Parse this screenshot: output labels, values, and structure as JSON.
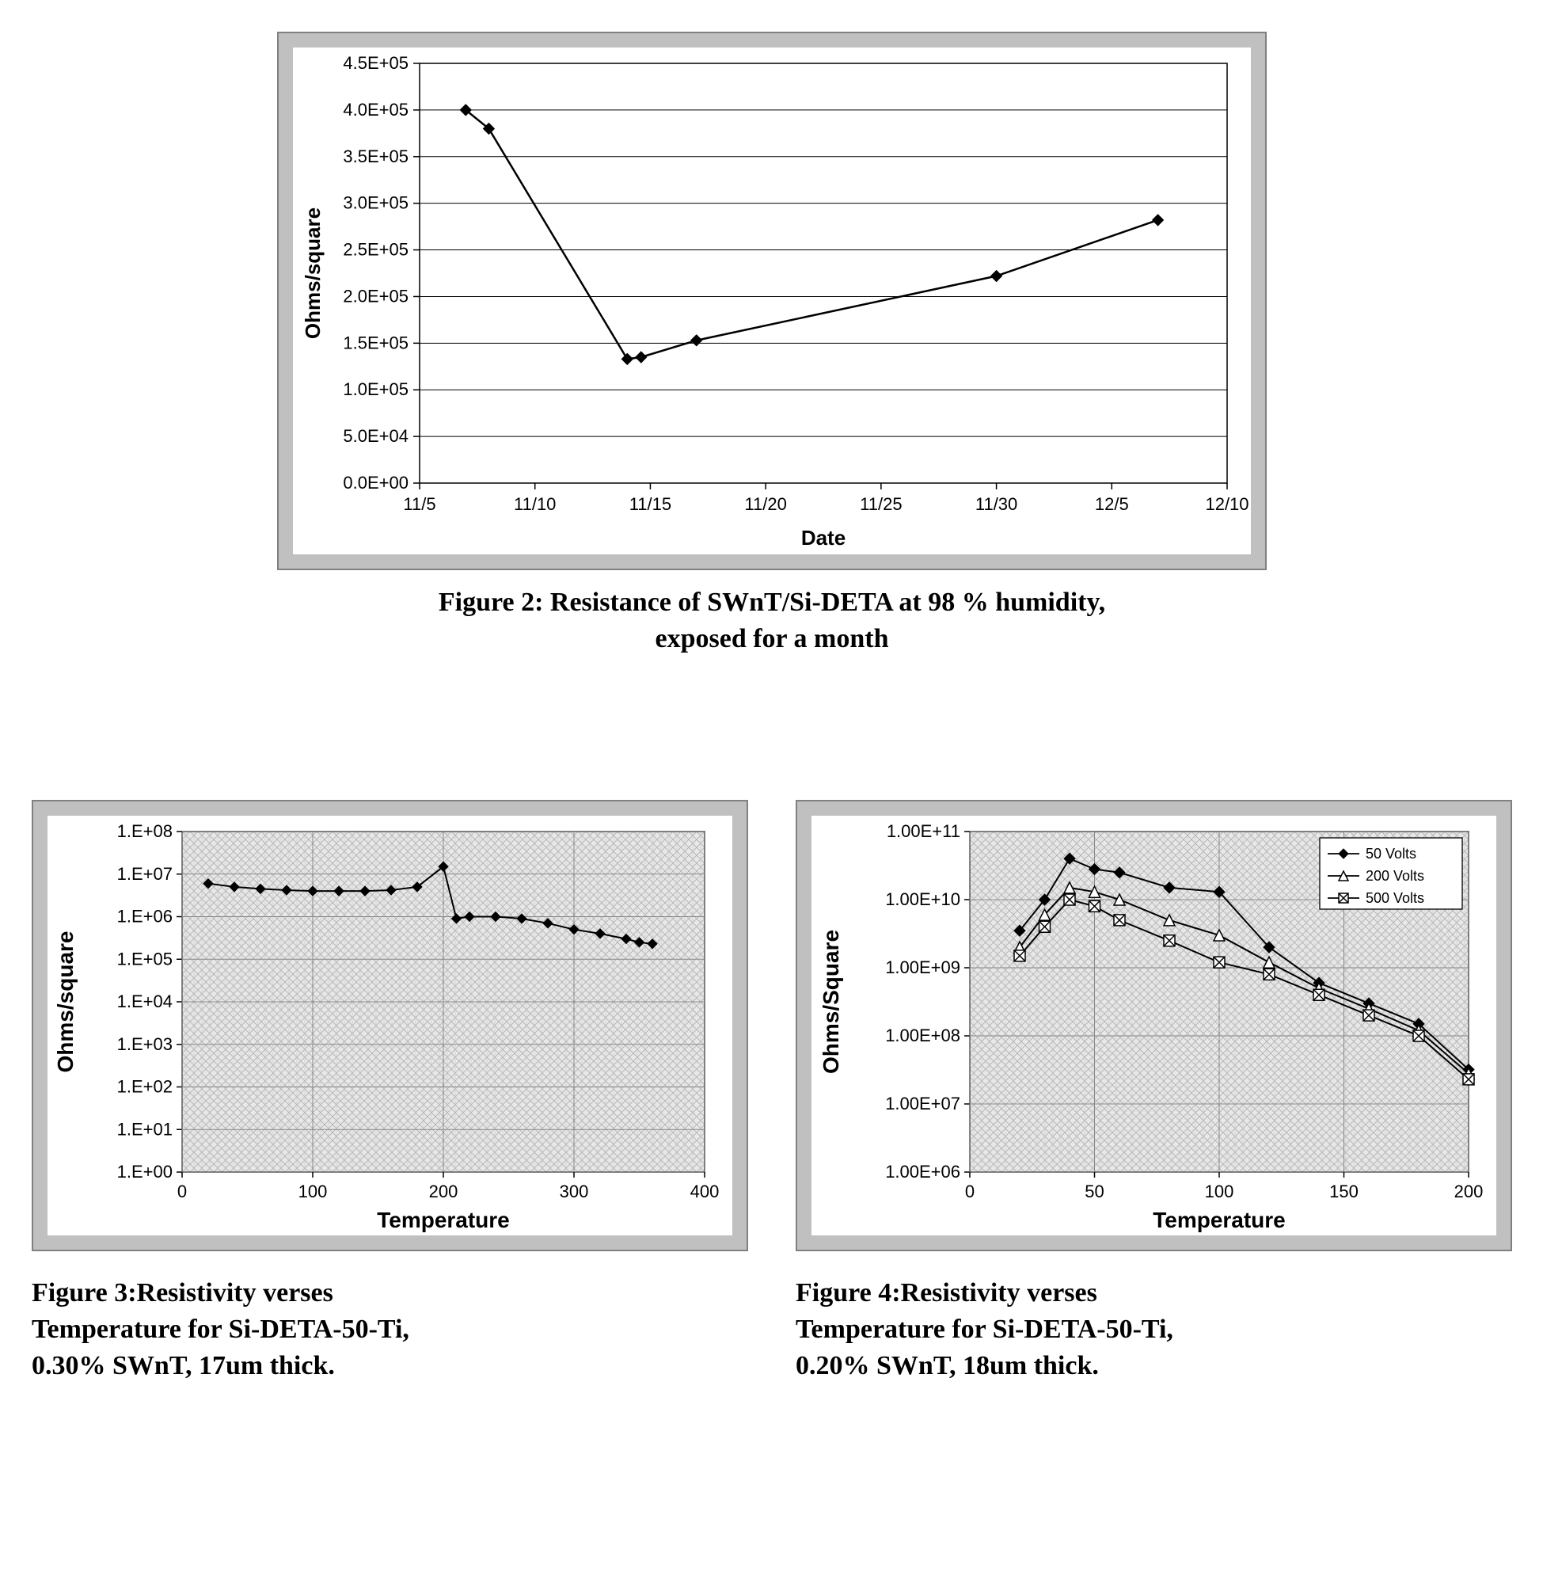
{
  "fig2": {
    "caption_line1": "Figure 2: Resistance of SWnT/Si-DETA at 98 % humidity,",
    "caption_line2": "exposed for a month",
    "type": "line",
    "xlabel": "Date",
    "ylabel": "Ohms/square",
    "x_ticks": [
      "11/5",
      "11/10",
      "11/15",
      "11/20",
      "11/25",
      "11/30",
      "12/5",
      "12/10"
    ],
    "x_tick_positions": [
      0,
      5,
      10,
      15,
      20,
      25,
      30,
      35
    ],
    "y_ticks": [
      "0.0E+00",
      "5.0E+04",
      "1.0E+05",
      "1.5E+05",
      "2.0E+05",
      "2.5E+05",
      "3.0E+05",
      "3.5E+05",
      "4.0E+05",
      "4.5E+05"
    ],
    "y_tick_values": [
      0,
      50000,
      100000,
      150000,
      200000,
      250000,
      300000,
      350000,
      400000,
      450000
    ],
    "xlim": [
      0,
      35
    ],
    "ylim": [
      0,
      450000
    ],
    "series": {
      "x": [
        2,
        3,
        9,
        9.6,
        12,
        25,
        32
      ],
      "y": [
        400000,
        380000,
        133000,
        135000,
        153000,
        222000,
        282000
      ]
    },
    "marker": "diamond",
    "marker_size": 7,
    "line_color": "#000000",
    "line_width": 2.5,
    "grid_color": "#000000",
    "axis_fontsize": 22,
    "label_fontsize": 26,
    "background_color": "#ffffff",
    "outer_background": "#c0c0c0",
    "frame_border": "#808080"
  },
  "fig3": {
    "caption_line1": "Figure 3:Resistivity verses",
    "caption_line2": "Temperature for Si-DETA-50-Ti,",
    "caption_line3": "0.30% SWnT, 17um thick.",
    "type": "line-log",
    "xlabel": "Temperature",
    "ylabel": "Ohms/square",
    "x_ticks": [
      "0",
      "100",
      "200",
      "300",
      "400"
    ],
    "x_tick_values": [
      0,
      100,
      200,
      300,
      400
    ],
    "y_ticks": [
      "1.E+00",
      "1.E+01",
      "1.E+02",
      "1.E+03",
      "1.E+04",
      "1.E+05",
      "1.E+06",
      "1.E+07",
      "1.E+08"
    ],
    "y_tick_exponents": [
      0,
      1,
      2,
      3,
      4,
      5,
      6,
      7,
      8
    ],
    "xlim": [
      0,
      400
    ],
    "ylim_exp": [
      0,
      8
    ],
    "series": {
      "x": [
        20,
        40,
        60,
        80,
        100,
        120,
        140,
        160,
        180,
        200,
        210,
        220,
        240,
        260,
        280,
        300,
        320,
        340,
        350,
        360
      ],
      "y": [
        6000000.0,
        5000000.0,
        4500000.0,
        4200000.0,
        4000000.0,
        4000000.0,
        4000000.0,
        4200000.0,
        5000000.0,
        15000000.0,
        900000.0,
        1000000.0,
        1000000.0,
        900000.0,
        700000.0,
        500000.0,
        400000.0,
        300000.0,
        250000.0,
        230000.0
      ]
    },
    "marker": "diamond",
    "marker_size": 6,
    "line_color": "#000000",
    "line_width": 2,
    "hatch_background": true,
    "axis_fontsize": 22,
    "label_fontsize": 28
  },
  "fig4": {
    "caption_line1": "Figure 4:Resistivity verses",
    "caption_line2": "Temperature for Si-DETA-50-Ti,",
    "caption_line3": "0.20% SWnT, 18um thick.",
    "type": "multi-line-log",
    "xlabel": "Temperature",
    "ylabel": "Ohms/Square",
    "x_ticks": [
      "0",
      "50",
      "100",
      "150",
      "200"
    ],
    "x_tick_values": [
      0,
      50,
      100,
      150,
      200
    ],
    "y_ticks": [
      "1.00E+06",
      "1.00E+07",
      "1.00E+08",
      "1.00E+09",
      "1.00E+10",
      "1.00E+11"
    ],
    "y_tick_exponents": [
      6,
      7,
      8,
      9,
      10,
      11
    ],
    "xlim": [
      0,
      200
    ],
    "ylim_exp": [
      6,
      11
    ],
    "legend": [
      "50 Volts",
      "200 Volts",
      "500 Volts"
    ],
    "series": [
      {
        "label": "50 Volts",
        "marker": "diamond",
        "x": [
          20,
          30,
          40,
          50,
          60,
          80,
          100,
          120,
          140,
          160,
          180,
          200
        ],
        "y": [
          3500000000.0,
          10000000000.0,
          40000000000.0,
          28000000000.0,
          25000000000.0,
          15000000000.0,
          13000000000.0,
          2000000000.0,
          600000000.0,
          300000000.0,
          150000000.0,
          32000000.0
        ]
      },
      {
        "label": "200 Volts",
        "marker": "triangle",
        "x": [
          20,
          30,
          40,
          50,
          60,
          80,
          100,
          120,
          140,
          160,
          180,
          200
        ],
        "y": [
          2000000000.0,
          6000000000.0,
          15000000000.0,
          13000000000.0,
          10000000000.0,
          5000000000.0,
          3000000000.0,
          1200000000.0,
          500000000.0,
          250000000.0,
          120000000.0,
          28000000.0
        ]
      },
      {
        "label": "500 Volts",
        "marker": "square-x",
        "x": [
          20,
          30,
          40,
          50,
          60,
          80,
          100,
          120,
          140,
          160,
          180,
          200
        ],
        "y": [
          1500000000.0,
          4000000000.0,
          10000000000.0,
          8000000000.0,
          5000000000.0,
          2500000000.0,
          1200000000.0,
          800000000.0,
          400000000.0,
          200000000.0,
          100000000.0,
          23000000.0
        ]
      }
    ],
    "line_color": "#000000",
    "line_width": 2,
    "marker_size": 7,
    "hatch_background": true,
    "axis_fontsize": 22,
    "label_fontsize": 28
  }
}
